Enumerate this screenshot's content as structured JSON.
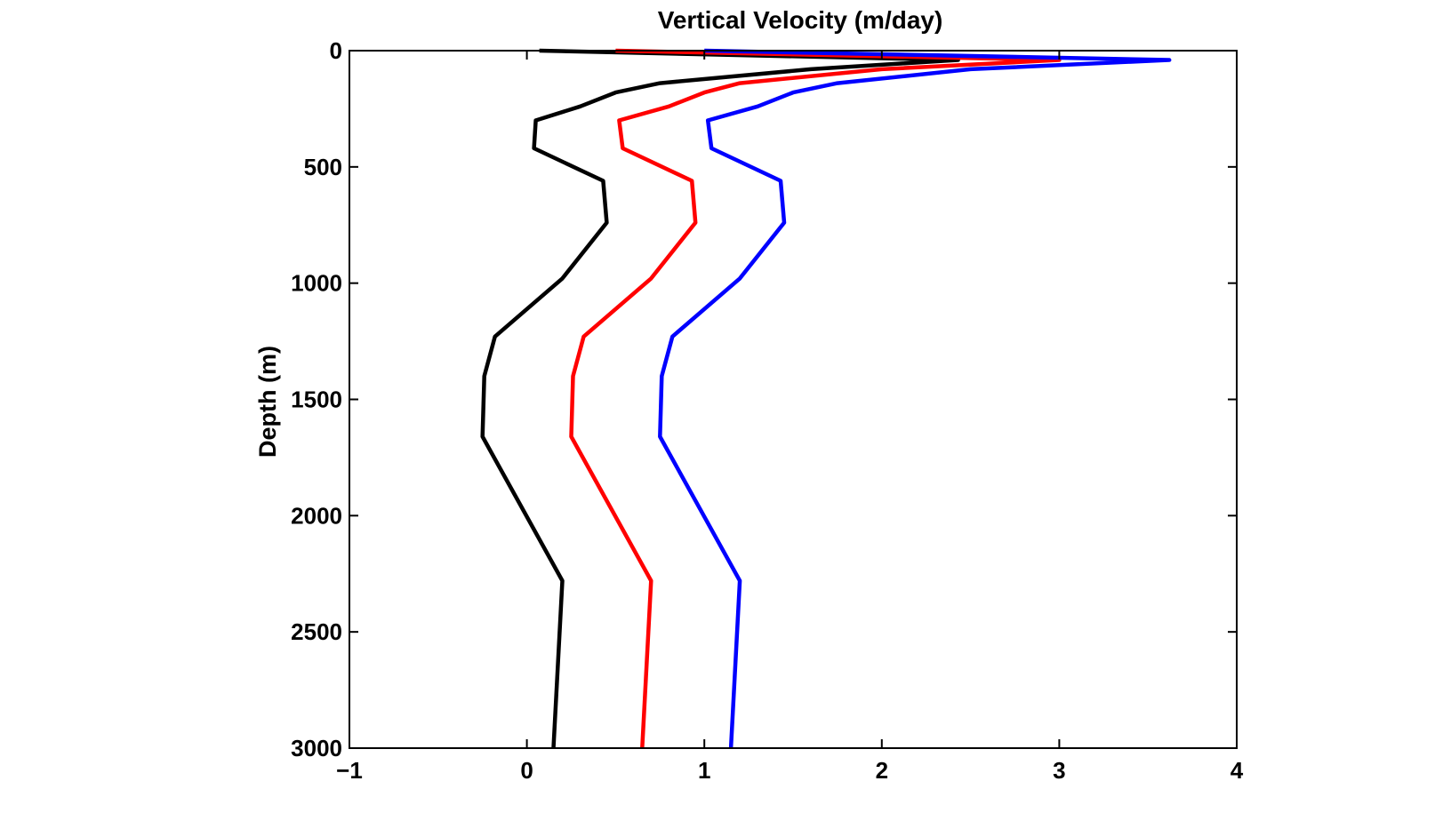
{
  "chart_data": {
    "type": "line",
    "title": "Vertical Velocity (m/day)",
    "xlabel": "",
    "ylabel": "Depth (m)",
    "xlim": [
      -1,
      4
    ],
    "ylim": [
      0,
      3000
    ],
    "y_reversed": true,
    "grid": false,
    "xticks": [
      -1,
      0,
      1,
      2,
      3,
      4
    ],
    "yticks": [
      0,
      500,
      1000,
      1500,
      2000,
      2500,
      3000
    ],
    "xtick_labels": [
      "−1",
      "0",
      "1",
      "2",
      "3",
      "4"
    ],
    "ytick_labels": [
      "0",
      "500",
      "1000",
      "1500",
      "2000",
      "2500",
      "3000"
    ],
    "series": [
      {
        "color": "#000000",
        "points": [
          [
            0.07,
            0
          ],
          [
            2.43,
            40
          ],
          [
            1.6,
            80
          ],
          [
            0.75,
            140
          ],
          [
            0.5,
            180
          ],
          [
            0.3,
            240
          ],
          [
            0.05,
            300
          ],
          [
            0.04,
            420
          ],
          [
            0.43,
            560
          ],
          [
            0.45,
            740
          ],
          [
            0.2,
            980
          ],
          [
            -0.18,
            1230
          ],
          [
            -0.24,
            1400
          ],
          [
            -0.25,
            1660
          ],
          [
            0.2,
            2280
          ],
          [
            0.15,
            3000
          ]
        ]
      },
      {
        "color": "#ff0000",
        "points": [
          [
            0.5,
            0
          ],
          [
            3.0,
            40
          ],
          [
            2.0,
            80
          ],
          [
            1.2,
            140
          ],
          [
            1.0,
            180
          ],
          [
            0.8,
            240
          ],
          [
            0.52,
            300
          ],
          [
            0.54,
            420
          ],
          [
            0.93,
            560
          ],
          [
            0.95,
            740
          ],
          [
            0.7,
            980
          ],
          [
            0.32,
            1230
          ],
          [
            0.26,
            1400
          ],
          [
            0.25,
            1660
          ],
          [
            0.7,
            2280
          ],
          [
            0.65,
            3000
          ]
        ]
      },
      {
        "color": "#0000ff",
        "points": [
          [
            1.0,
            0
          ],
          [
            3.62,
            40
          ],
          [
            2.5,
            80
          ],
          [
            1.75,
            140
          ],
          [
            1.5,
            180
          ],
          [
            1.3,
            240
          ],
          [
            1.02,
            300
          ],
          [
            1.04,
            420
          ],
          [
            1.43,
            560
          ],
          [
            1.45,
            740
          ],
          [
            1.2,
            980
          ],
          [
            0.82,
            1230
          ],
          [
            0.76,
            1400
          ],
          [
            0.75,
            1660
          ],
          [
            1.2,
            2280
          ],
          [
            1.15,
            3000
          ]
        ]
      }
    ]
  }
}
